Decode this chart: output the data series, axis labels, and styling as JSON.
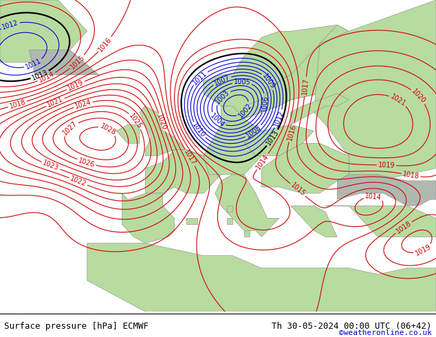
{
  "title_left": "Surface pressure [hPa] ECMWF",
  "title_right": "Th 30-05-2024 00:00 UTC (06+42)",
  "credit": "©weatheronline.co.uk",
  "bg_ocean": "#d8d8d8",
  "bg_land_green": "#b8dba0",
  "bg_land_gray": "#b0b8b0",
  "contour_color_1013": "#000000",
  "contour_color_low": "#0000cc",
  "contour_color_high": "#cc0000",
  "label_fontsize": 7,
  "title_fontsize": 9,
  "credit_fontsize": 8,
  "figsize": [
    6.34,
    4.9
  ],
  "dpi": 100
}
